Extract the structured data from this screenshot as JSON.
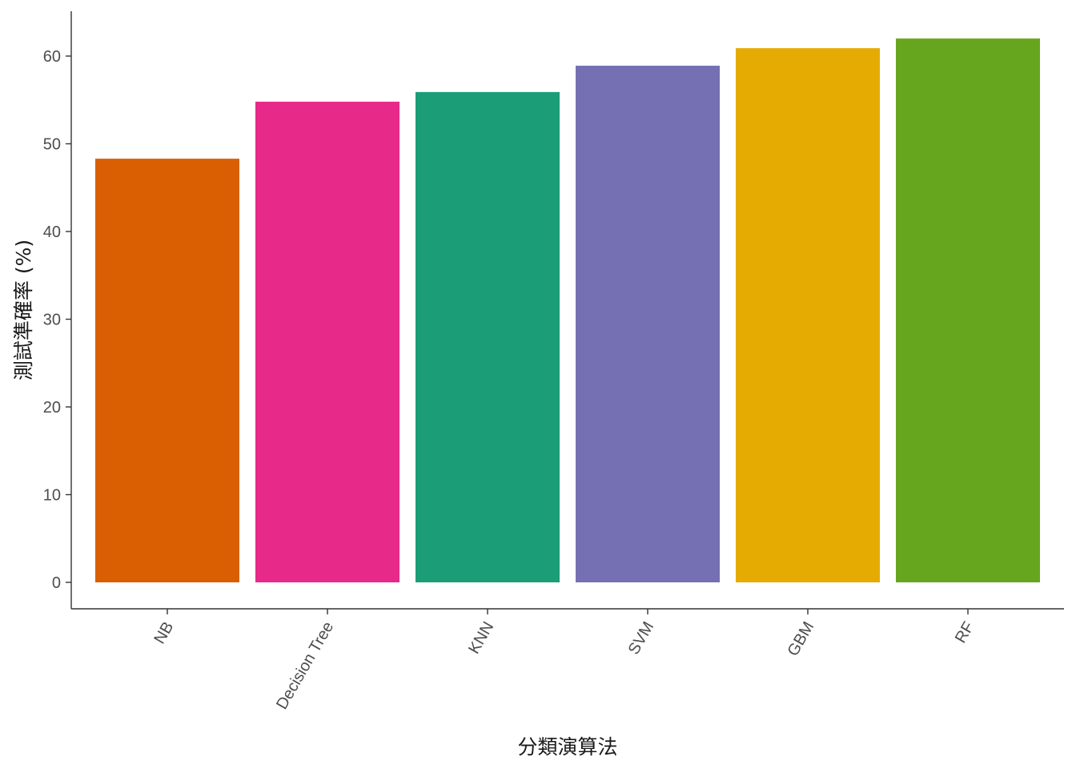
{
  "chart_data": {
    "type": "bar",
    "categories": [
      "NB",
      "Decision Tree",
      "KNN",
      "SVM",
      "GBM",
      "RF"
    ],
    "values": [
      48.3,
      54.8,
      55.9,
      58.9,
      60.9,
      62.0
    ],
    "colors": [
      "#d95f02",
      "#e7298a",
      "#1b9e77",
      "#7570b3",
      "#e6ab02",
      "#66a61e"
    ],
    "title": "",
    "xlabel": "分類演算法",
    "ylabel": "測試準確率 (%)",
    "ylim": [
      0,
      65
    ],
    "yticks": [
      0,
      10,
      20,
      30,
      40,
      50,
      60
    ],
    "grid": false,
    "legend": "none"
  }
}
